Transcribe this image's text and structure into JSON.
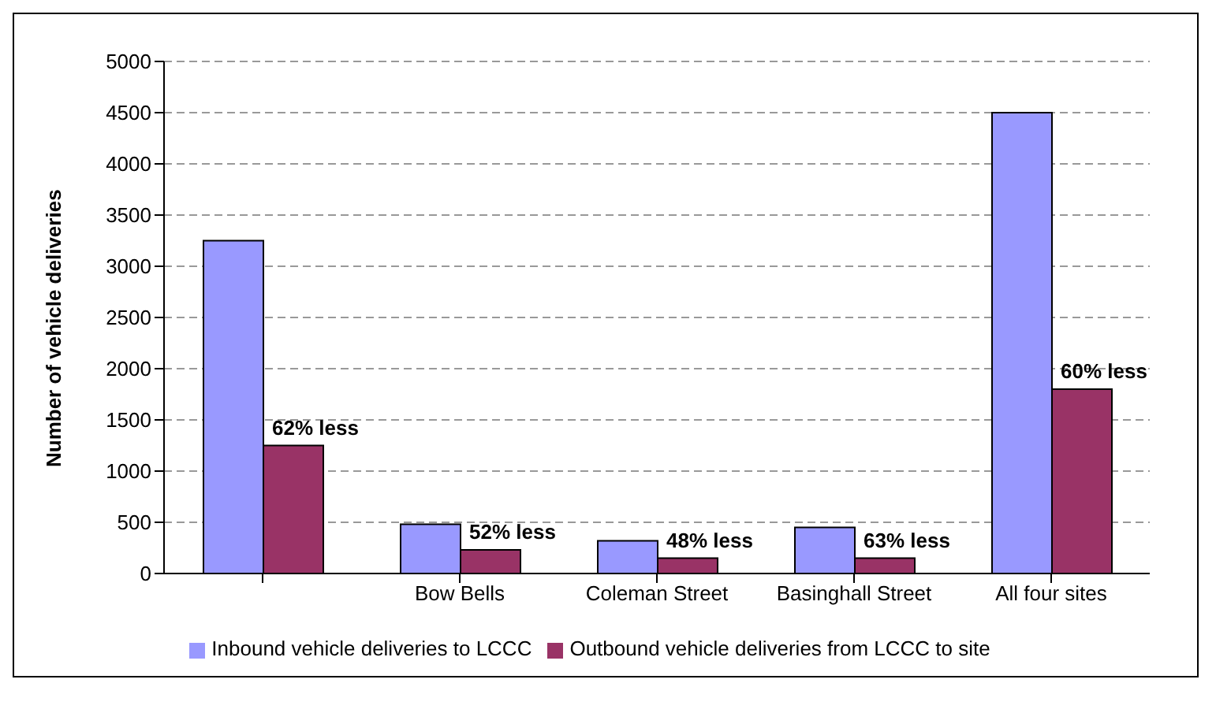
{
  "chart_data": {
    "type": "bar",
    "ylabel": "Number of vehicle deliveries",
    "categories": [
      null,
      "Bow Bells",
      "Coleman Street",
      "Basinghall Street",
      "All four sites"
    ],
    "series": [
      {
        "name": "Inbound vehicle deliveries to LCCC",
        "color": "#9999ff",
        "values": [
          3250,
          480,
          320,
          450,
          4500
        ]
      },
      {
        "name": "Outbound vehicle deliveries from LCCC to site",
        "color": "#993366",
        "values": [
          1250,
          230,
          150,
          150,
          1800
        ]
      }
    ],
    "annotations": [
      {
        "text": "62% less",
        "y": 1250
      },
      {
        "text": "52% less",
        "x": "Bow Bells",
        "y": 230
      },
      {
        "text": "48% less",
        "x": "Coleman Street",
        "y": 150
      },
      {
        "text": "63% less",
        "x": "Basinghall Street",
        "y": 150
      },
      {
        "text": "60% less",
        "x": "All four sites",
        "y": 1800
      }
    ],
    "ylim": [
      0,
      5000
    ],
    "yticks": [
      0,
      500,
      1000,
      1500,
      2000,
      2500,
      3000,
      3500,
      4000,
      4500,
      5000
    ],
    "grid": "y",
    "legend": "bottom"
  }
}
